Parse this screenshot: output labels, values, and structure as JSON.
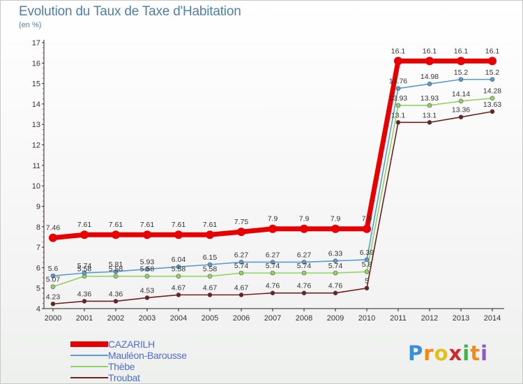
{
  "header": {
    "title": "Evolution du Taux de Taxe d'Habitation",
    "unit": "(en %)"
  },
  "logo": {
    "letters": [
      "P",
      "r",
      "o",
      "x",
      "i",
      "t",
      "i"
    ],
    "colors": [
      "#3a8fd6",
      "#f08a1a",
      "#e0c020",
      "#d02b2b",
      "#48b04a",
      "#f08a1a",
      "#8a5cc0"
    ]
  },
  "chart_data": {
    "type": "line",
    "title": "Evolution du Taux de Taxe d'Habitation",
    "ylabel": "(en %)",
    "xlabel": "",
    "ylim": [
      4,
      17
    ],
    "yticks": [
      "4",
      "5",
      "6",
      "7",
      "8",
      "9",
      "10",
      "11",
      "12",
      "13",
      "14",
      "15",
      "16",
      "17"
    ],
    "grid": false,
    "legend_position": "bottom-left",
    "categories": [
      "2000",
      "2001",
      "2002",
      "2003",
      "2004",
      "2005",
      "2006",
      "2007",
      "2008",
      "2009",
      "2010",
      "2011",
      "2012",
      "2013",
      "2014"
    ],
    "series": [
      {
        "name": "CAZARILH",
        "color": "#e80000",
        "values": [
          7.46,
          7.61,
          7.61,
          7.61,
          7.61,
          7.61,
          7.75,
          7.9,
          7.9,
          7.9,
          7.9,
          16.1,
          16.1,
          16.1,
          16.1
        ],
        "labels": [
          "7.46",
          "7.61",
          "7.61",
          "7.61",
          "7.61",
          "7.61",
          "7.75",
          "7.9",
          "7.9",
          "7.9",
          "7.9",
          "16.1",
          "16.1",
          "16.1",
          "16.1"
        ]
      },
      {
        "name": "Mauléon-Barousse",
        "color": "#5a9bd0",
        "values": [
          5.6,
          5.74,
          5.81,
          5.93,
          6.04,
          6.15,
          6.27,
          6.27,
          6.27,
          6.33,
          6.39,
          14.76,
          14.98,
          15.2,
          15.2
        ],
        "labels": [
          "5.6",
          "5.74",
          "5.81",
          "5.93",
          "6.04",
          "6.15",
          "6.27",
          "6.27",
          "6.27",
          "6.33",
          "6.39",
          "14.76",
          "14.98",
          "15.2",
          "15.2"
        ]
      },
      {
        "name": "Thèbe",
        "color": "#8fd460",
        "values": [
          5.07,
          5.58,
          5.58,
          5.58,
          5.58,
          5.58,
          5.74,
          5.74,
          5.74,
          5.74,
          5.8,
          13.93,
          13.93,
          14.14,
          14.28
        ],
        "labels": [
          "5.07",
          "5.58",
          "5.58",
          "5.58",
          "5.58",
          "5.58",
          "5.74",
          "5.74",
          "5.74",
          "5.74",
          "5.8",
          "13.93",
          "13.93",
          "14.14",
          "14.28"
        ]
      },
      {
        "name": "Troubat",
        "color": "#6e2020",
        "values": [
          4.23,
          4.36,
          4.36,
          4.53,
          4.67,
          4.67,
          4.67,
          4.76,
          4.76,
          4.76,
          5,
          13.1,
          13.1,
          13.36,
          13.63
        ],
        "labels": [
          "4.23",
          "4.36",
          "4.36",
          "4.53",
          "4.67",
          "4.67",
          "4.67",
          "4.76",
          "4.76",
          "4.76",
          "5",
          "13.1",
          "13.1",
          "13.36",
          "13.63"
        ]
      }
    ]
  }
}
